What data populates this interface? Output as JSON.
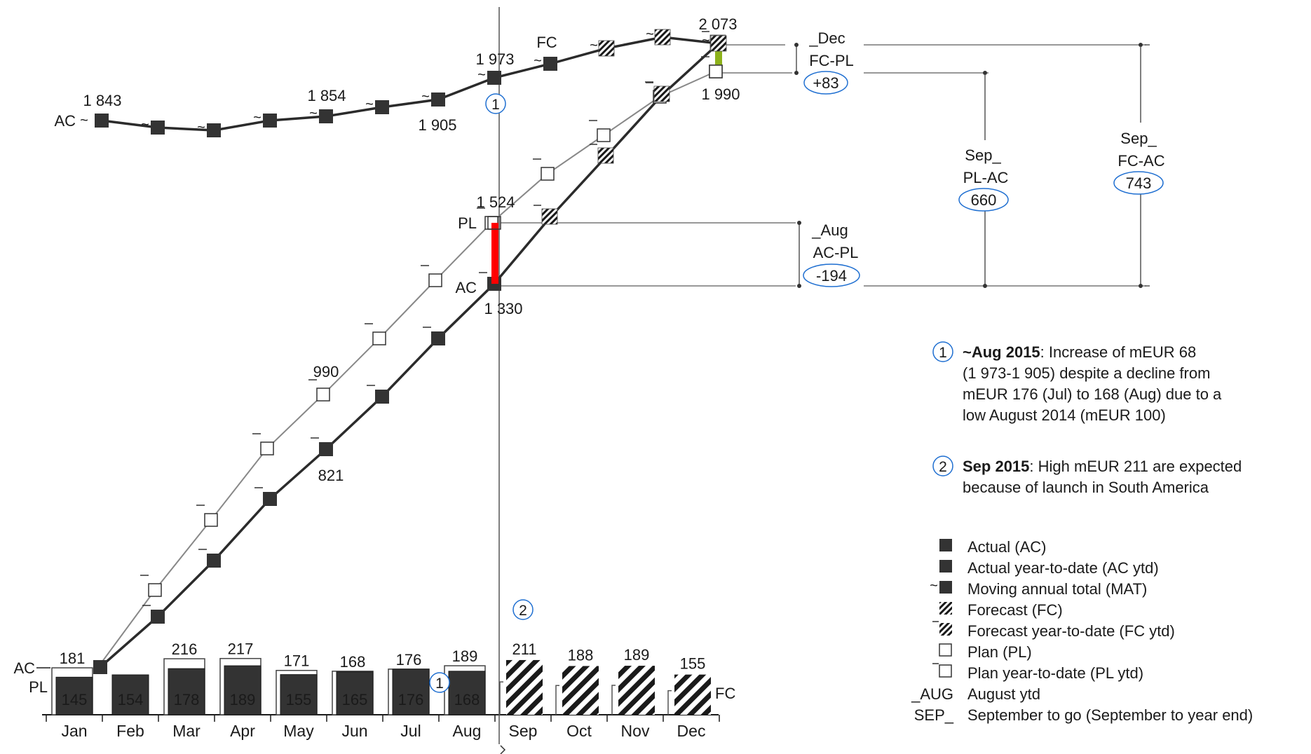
{
  "chart_data": {
    "type": "bar",
    "categories": [
      "Jan",
      "Feb",
      "Mar",
      "Apr",
      "May",
      "Jun",
      "Jul",
      "Aug",
      "Sep",
      "Oct",
      "Nov",
      "Dec"
    ],
    "monthly": {
      "ac": [
        145,
        154,
        178,
        189,
        155,
        165,
        176,
        168
      ],
      "pl": [
        181,
        null,
        216,
        217,
        171,
        168,
        176,
        189
      ],
      "fc": [
        null,
        null,
        null,
        null,
        null,
        null,
        null,
        null,
        211,
        188,
        189,
        155
      ]
    },
    "mat": {
      "values": [
        1843,
        null,
        null,
        null,
        null,
        1854,
        null,
        1905,
        1973,
        null,
        null,
        2073
      ],
      "label_values": [
        "1 843",
        "",
        "",
        "",
        "",
        "1 854",
        "",
        "1 905",
        "1 973",
        "",
        "",
        "2 073"
      ],
      "start_label": "AC",
      "fc_label": "FC"
    },
    "ytd": {
      "pl_labels": {
        "4": "990",
        "7": "1 524",
        "11": "1 990"
      },
      "ac_labels": {
        "4": "821",
        "7": "1 330"
      },
      "pl_name": "PL",
      "ac_name": "AC"
    },
    "bar_labels": {
      "ac_left": "AC",
      "pl_left": "PL",
      "fc_right": "FC"
    },
    "brackets": {
      "dec": {
        "title1": "_Dec",
        "title2": "FC-PL",
        "value": "+83"
      },
      "aug": {
        "title1": "_Aug",
        "title2": "AC-PL",
        "value": "-194"
      },
      "sep_pl": {
        "title1": "Sep_",
        "title2": "PL-AC",
        "value": "660"
      },
      "sep_fc": {
        "title1": "Sep_",
        "title2": "FC-AC",
        "value": "743"
      }
    },
    "markers": {
      "aug": "1",
      "sep": "2"
    },
    "colors": {
      "ac": "#333333",
      "pl": "#ffffff",
      "neg": "#ff0000",
      "pos": "#8db21b",
      "circle": "#1f6fd1",
      "line_pl": "#888888"
    }
  },
  "notes": [
    {
      "num": "1",
      "bold": "~Aug 2015",
      "lines": [
        ": Increase of  mEUR 68",
        "(1 973-1 905) despite a decline from",
        "mEUR 176 (Jul) to 168 (Aug) due to a",
        "low August 2014 (mEUR 100)"
      ]
    },
    {
      "num": "2",
      "bold": "Sep 2015",
      "lines": [
        ": High mEUR 211 are expected",
        "because of launch in South America"
      ]
    }
  ],
  "legend": [
    {
      "key": "ac",
      "text": "Actual (AC)"
    },
    {
      "key": "ac_ytd",
      "text": "Actual year-to-date (AC ytd)"
    },
    {
      "key": "mat",
      "text": "Moving annual total (MAT)"
    },
    {
      "key": "fc",
      "text": "Forecast (FC)"
    },
    {
      "key": "fc_ytd",
      "text": "Forecast year-to-date (FC ytd)"
    },
    {
      "key": "pl",
      "text": "Plan (PL)"
    },
    {
      "key": "pl_ytd",
      "text": "Plan year-to-date (PL ytd)"
    },
    {
      "key": "aug",
      "symbol": "_AUG",
      "text": "August ytd"
    },
    {
      "key": "sep",
      "symbol": "SEP_",
      "text": "September to go (September to year end)"
    }
  ]
}
